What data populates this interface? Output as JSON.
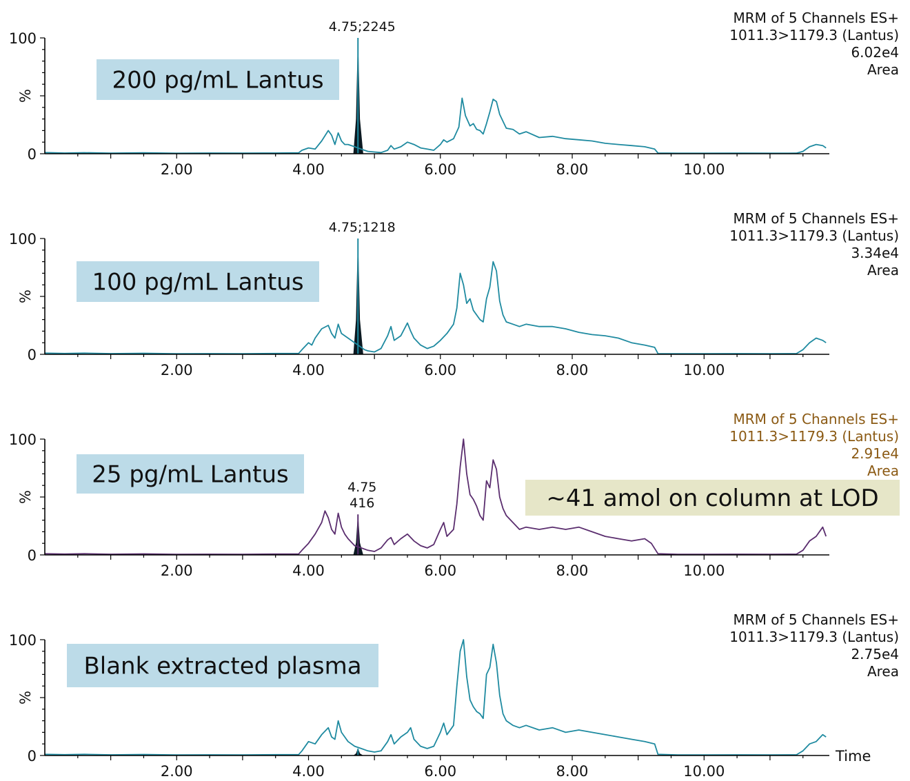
{
  "chart_data": [
    {
      "type": "line",
      "label_box": "200 pg/mL Lantus",
      "info": [
        "MRM of 5 Channels ES+",
        "1011.3>1179.3 (Lantus)",
        "6.02e4",
        "Area"
      ],
      "info_color": "#111111",
      "line_color": "#1e8aa0",
      "peak_label": [
        "4.75;2245"
      ],
      "peak": {
        "x": 4.75,
        "height": 100
      },
      "y_ticks": [
        "0",
        "100"
      ],
      "ylabel": "%",
      "x_tick_labels": [
        "2.00",
        "4.00",
        "6.00",
        "8.00",
        "10.00"
      ],
      "xlim": [
        0,
        11.9
      ],
      "ylim": [
        0,
        100
      ],
      "trace": [
        [
          0,
          1
        ],
        [
          0.3,
          0.6
        ],
        [
          0.6,
          0.9
        ],
        [
          1.0,
          0.5
        ],
        [
          1.5,
          0.8
        ],
        [
          2.0,
          0.4
        ],
        [
          2.5,
          0.6
        ],
        [
          3.0,
          0.5
        ],
        [
          3.5,
          0.6
        ],
        [
          3.85,
          0.8
        ],
        [
          3.9,
          3
        ],
        [
          4.0,
          5
        ],
        [
          4.1,
          4
        ],
        [
          4.2,
          11
        ],
        [
          4.3,
          20
        ],
        [
          4.35,
          16
        ],
        [
          4.4,
          8
        ],
        [
          4.45,
          18
        ],
        [
          4.5,
          11
        ],
        [
          4.55,
          8
        ],
        [
          4.6,
          8
        ],
        [
          4.7,
          6
        ],
        [
          4.8,
          4
        ],
        [
          4.85,
          3
        ],
        [
          4.9,
          2
        ],
        [
          5.0,
          1.5
        ],
        [
          5.1,
          1
        ],
        [
          5.2,
          3
        ],
        [
          5.25,
          7
        ],
        [
          5.3,
          4
        ],
        [
          5.4,
          6
        ],
        [
          5.5,
          10
        ],
        [
          5.6,
          8
        ],
        [
          5.7,
          5
        ],
        [
          5.8,
          4
        ],
        [
          5.9,
          3
        ],
        [
          6.0,
          8
        ],
        [
          6.05,
          12
        ],
        [
          6.1,
          10
        ],
        [
          6.2,
          13
        ],
        [
          6.28,
          23
        ],
        [
          6.33,
          48
        ],
        [
          6.38,
          33
        ],
        [
          6.45,
          24
        ],
        [
          6.5,
          26
        ],
        [
          6.55,
          21
        ],
        [
          6.6,
          20
        ],
        [
          6.65,
          17
        ],
        [
          6.7,
          26
        ],
        [
          6.75,
          36
        ],
        [
          6.8,
          47
        ],
        [
          6.85,
          45
        ],
        [
          6.9,
          34
        ],
        [
          6.95,
          28
        ],
        [
          7.0,
          22
        ],
        [
          7.1,
          21
        ],
        [
          7.2,
          17
        ],
        [
          7.3,
          19
        ],
        [
          7.5,
          14
        ],
        [
          7.7,
          15
        ],
        [
          7.9,
          13
        ],
        [
          8.1,
          12
        ],
        [
          8.3,
          11
        ],
        [
          8.5,
          9
        ],
        [
          8.7,
          8
        ],
        [
          8.9,
          7
        ],
        [
          9.1,
          6
        ],
        [
          9.25,
          4
        ],
        [
          9.3,
          0.6
        ],
        [
          9.6,
          0.4
        ],
        [
          10.0,
          0.4
        ],
        [
          10.5,
          0.5
        ],
        [
          11.0,
          0.4
        ],
        [
          11.4,
          0.5
        ],
        [
          11.5,
          2
        ],
        [
          11.6,
          6
        ],
        [
          11.7,
          8
        ],
        [
          11.8,
          7
        ],
        [
          11.85,
          5
        ]
      ]
    },
    {
      "type": "line",
      "label_box": "100 pg/mL Lantus",
      "info": [
        "MRM of 5 Channels ES+",
        "1011.3>1179.3 (Lantus)",
        "3.34e4",
        "Area"
      ],
      "info_color": "#111111",
      "line_color": "#1e8aa0",
      "peak_label": [
        "4.75;1218"
      ],
      "peak": {
        "x": 4.75,
        "height": 100
      },
      "y_ticks": [
        "0",
        "100"
      ],
      "ylabel": "%",
      "x_tick_labels": [
        "2.00",
        "4.00",
        "6.00",
        "8.00",
        "10.00"
      ],
      "xlim": [
        0,
        11.9
      ],
      "ylim": [
        0,
        100
      ],
      "trace": [
        [
          0,
          1
        ],
        [
          0.3,
          0.7
        ],
        [
          0.6,
          1
        ],
        [
          1.0,
          0.6
        ],
        [
          1.5,
          0.9
        ],
        [
          2.0,
          0.5
        ],
        [
          2.5,
          0.6
        ],
        [
          3.0,
          0.5
        ],
        [
          3.5,
          0.7
        ],
        [
          3.85,
          0.8
        ],
        [
          3.9,
          4
        ],
        [
          4.0,
          10
        ],
        [
          4.05,
          8
        ],
        [
          4.1,
          14
        ],
        [
          4.2,
          22
        ],
        [
          4.3,
          25
        ],
        [
          4.35,
          18
        ],
        [
          4.4,
          14
        ],
        [
          4.45,
          26
        ],
        [
          4.5,
          18
        ],
        [
          4.55,
          16
        ],
        [
          4.6,
          14
        ],
        [
          4.7,
          10
        ],
        [
          4.8,
          6
        ],
        [
          4.85,
          4
        ],
        [
          4.9,
          3
        ],
        [
          5.0,
          2
        ],
        [
          5.1,
          5
        ],
        [
          5.2,
          16
        ],
        [
          5.25,
          24
        ],
        [
          5.3,
          12
        ],
        [
          5.4,
          16
        ],
        [
          5.5,
          27
        ],
        [
          5.55,
          20
        ],
        [
          5.6,
          14
        ],
        [
          5.7,
          8
        ],
        [
          5.8,
          5
        ],
        [
          5.9,
          7
        ],
        [
          6.0,
          12
        ],
        [
          6.1,
          18
        ],
        [
          6.2,
          26
        ],
        [
          6.25,
          40
        ],
        [
          6.3,
          70
        ],
        [
          6.35,
          60
        ],
        [
          6.4,
          44
        ],
        [
          6.45,
          48
        ],
        [
          6.5,
          38
        ],
        [
          6.6,
          30
        ],
        [
          6.65,
          28
        ],
        [
          6.7,
          48
        ],
        [
          6.75,
          58
        ],
        [
          6.8,
          80
        ],
        [
          6.85,
          72
        ],
        [
          6.9,
          46
        ],
        [
          6.95,
          34
        ],
        [
          7.0,
          28
        ],
        [
          7.1,
          26
        ],
        [
          7.2,
          24
        ],
        [
          7.3,
          26
        ],
        [
          7.5,
          24
        ],
        [
          7.7,
          24
        ],
        [
          7.9,
          22
        ],
        [
          8.1,
          19
        ],
        [
          8.3,
          17
        ],
        [
          8.5,
          16
        ],
        [
          8.7,
          14
        ],
        [
          8.9,
          10
        ],
        [
          9.1,
          8
        ],
        [
          9.25,
          6
        ],
        [
          9.3,
          0.6
        ],
        [
          9.6,
          0.5
        ],
        [
          10.0,
          0.5
        ],
        [
          10.5,
          0.6
        ],
        [
          11.0,
          0.5
        ],
        [
          11.4,
          0.6
        ],
        [
          11.5,
          4
        ],
        [
          11.6,
          10
        ],
        [
          11.7,
          14
        ],
        [
          11.8,
          12
        ],
        [
          11.85,
          10
        ]
      ]
    },
    {
      "type": "line",
      "label_box": "25 pg/mL Lantus",
      "info": [
        "MRM of 5 Channels ES+",
        "1011.3>1179.3 (Lantus)",
        "2.91e4",
        "Area"
      ],
      "info_color": "#8b5a14",
      "line_color": "#5a2d6e",
      "peak_label": [
        "4.75",
        "416"
      ],
      "peak": {
        "x": 4.75,
        "height": 35
      },
      "note": "~41 amol  on column at LOD",
      "y_ticks": [
        "0",
        "100"
      ],
      "ylabel": "%",
      "x_tick_labels": [
        "2.00",
        "4.00",
        "6.00",
        "8.00",
        "10.00"
      ],
      "xlim": [
        0,
        11.9
      ],
      "ylim": [
        0,
        100
      ],
      "trace": [
        [
          0,
          1
        ],
        [
          0.3,
          0.7
        ],
        [
          0.6,
          1
        ],
        [
          1.0,
          0.6
        ],
        [
          1.5,
          0.9
        ],
        [
          2.0,
          0.5
        ],
        [
          2.5,
          0.6
        ],
        [
          3.0,
          0.5
        ],
        [
          3.5,
          0.7
        ],
        [
          3.85,
          0.8
        ],
        [
          3.9,
          4
        ],
        [
          4.0,
          10
        ],
        [
          4.1,
          18
        ],
        [
          4.2,
          28
        ],
        [
          4.25,
          38
        ],
        [
          4.3,
          32
        ],
        [
          4.35,
          22
        ],
        [
          4.4,
          18
        ],
        [
          4.45,
          36
        ],
        [
          4.5,
          24
        ],
        [
          4.55,
          18
        ],
        [
          4.6,
          14
        ],
        [
          4.7,
          8
        ],
        [
          4.8,
          6
        ],
        [
          4.9,
          4
        ],
        [
          5.0,
          3
        ],
        [
          5.1,
          6
        ],
        [
          5.2,
          13
        ],
        [
          5.25,
          15
        ],
        [
          5.3,
          9
        ],
        [
          5.4,
          14
        ],
        [
          5.5,
          18
        ],
        [
          5.6,
          12
        ],
        [
          5.7,
          8
        ],
        [
          5.8,
          6
        ],
        [
          5.9,
          9
        ],
        [
          6.0,
          22
        ],
        [
          6.05,
          28
        ],
        [
          6.1,
          16
        ],
        [
          6.2,
          22
        ],
        [
          6.25,
          44
        ],
        [
          6.3,
          76
        ],
        [
          6.35,
          100
        ],
        [
          6.4,
          70
        ],
        [
          6.45,
          52
        ],
        [
          6.5,
          48
        ],
        [
          6.55,
          42
        ],
        [
          6.6,
          34
        ],
        [
          6.65,
          30
        ],
        [
          6.7,
          64
        ],
        [
          6.75,
          58
        ],
        [
          6.8,
          82
        ],
        [
          6.85,
          74
        ],
        [
          6.9,
          50
        ],
        [
          6.95,
          40
        ],
        [
          7.0,
          34
        ],
        [
          7.1,
          28
        ],
        [
          7.2,
          22
        ],
        [
          7.3,
          24
        ],
        [
          7.5,
          22
        ],
        [
          7.7,
          24
        ],
        [
          7.9,
          22
        ],
        [
          8.1,
          24
        ],
        [
          8.3,
          20
        ],
        [
          8.5,
          16
        ],
        [
          8.7,
          14
        ],
        [
          8.9,
          12
        ],
        [
          9.1,
          14
        ],
        [
          9.2,
          10
        ],
        [
          9.3,
          1
        ],
        [
          9.6,
          0.5
        ],
        [
          10.0,
          0.5
        ],
        [
          10.5,
          0.6
        ],
        [
          11.0,
          0.5
        ],
        [
          11.4,
          0.6
        ],
        [
          11.5,
          4
        ],
        [
          11.6,
          12
        ],
        [
          11.7,
          16
        ],
        [
          11.8,
          24
        ],
        [
          11.85,
          16
        ]
      ]
    },
    {
      "type": "line",
      "label_box": "Blank extracted plasma",
      "info": [
        "MRM of 5 Channels ES+",
        "1011.3>1179.3 (Lantus)",
        "2.75e4",
        "Area"
      ],
      "info_color": "#111111",
      "line_color": "#1e8aa0",
      "peak_label": [],
      "peak": {
        "x": 4.75,
        "height": 6
      },
      "y_ticks": [
        "0",
        "100"
      ],
      "ylabel": "%",
      "x_tick_labels": [
        "2.00",
        "4.00",
        "6.00",
        "8.00",
        "10.00"
      ],
      "xlabel": "Time",
      "xlim": [
        0,
        11.9
      ],
      "ylim": [
        0,
        100
      ],
      "trace": [
        [
          0,
          1
        ],
        [
          0.3,
          0.7
        ],
        [
          0.6,
          1
        ],
        [
          1.0,
          0.6
        ],
        [
          1.5,
          0.9
        ],
        [
          2.0,
          0.5
        ],
        [
          2.5,
          0.6
        ],
        [
          3.0,
          0.5
        ],
        [
          3.5,
          0.7
        ],
        [
          3.85,
          0.8
        ],
        [
          3.9,
          4
        ],
        [
          4.0,
          12
        ],
        [
          4.1,
          10
        ],
        [
          4.2,
          18
        ],
        [
          4.3,
          24
        ],
        [
          4.35,
          16
        ],
        [
          4.4,
          14
        ],
        [
          4.45,
          30
        ],
        [
          4.5,
          20
        ],
        [
          4.55,
          16
        ],
        [
          4.6,
          12
        ],
        [
          4.7,
          8
        ],
        [
          4.8,
          6
        ],
        [
          4.9,
          4
        ],
        [
          5.0,
          3
        ],
        [
          5.1,
          4
        ],
        [
          5.2,
          12
        ],
        [
          5.25,
          18
        ],
        [
          5.3,
          10
        ],
        [
          5.4,
          16
        ],
        [
          5.5,
          20
        ],
        [
          5.55,
          24
        ],
        [
          5.6,
          14
        ],
        [
          5.7,
          8
        ],
        [
          5.8,
          6
        ],
        [
          5.9,
          8
        ],
        [
          6.0,
          20
        ],
        [
          6.05,
          28
        ],
        [
          6.1,
          18
        ],
        [
          6.2,
          26
        ],
        [
          6.25,
          60
        ],
        [
          6.3,
          90
        ],
        [
          6.35,
          100
        ],
        [
          6.4,
          68
        ],
        [
          6.45,
          48
        ],
        [
          6.5,
          42
        ],
        [
          6.55,
          38
        ],
        [
          6.6,
          36
        ],
        [
          6.65,
          32
        ],
        [
          6.7,
          70
        ],
        [
          6.75,
          76
        ],
        [
          6.8,
          96
        ],
        [
          6.85,
          80
        ],
        [
          6.9,
          52
        ],
        [
          6.95,
          36
        ],
        [
          7.0,
          30
        ],
        [
          7.1,
          26
        ],
        [
          7.2,
          24
        ],
        [
          7.3,
          26
        ],
        [
          7.5,
          22
        ],
        [
          7.7,
          24
        ],
        [
          7.9,
          20
        ],
        [
          8.1,
          22
        ],
        [
          8.3,
          20
        ],
        [
          8.5,
          18
        ],
        [
          8.7,
          16
        ],
        [
          8.9,
          14
        ],
        [
          9.1,
          12
        ],
        [
          9.25,
          10
        ],
        [
          9.3,
          1
        ],
        [
          9.6,
          0.5
        ],
        [
          10.0,
          0.5
        ],
        [
          10.5,
          0.6
        ],
        [
          11.0,
          0.5
        ],
        [
          11.4,
          0.6
        ],
        [
          11.5,
          4
        ],
        [
          11.6,
          10
        ],
        [
          11.7,
          12
        ],
        [
          11.8,
          18
        ],
        [
          11.85,
          16
        ]
      ]
    }
  ]
}
